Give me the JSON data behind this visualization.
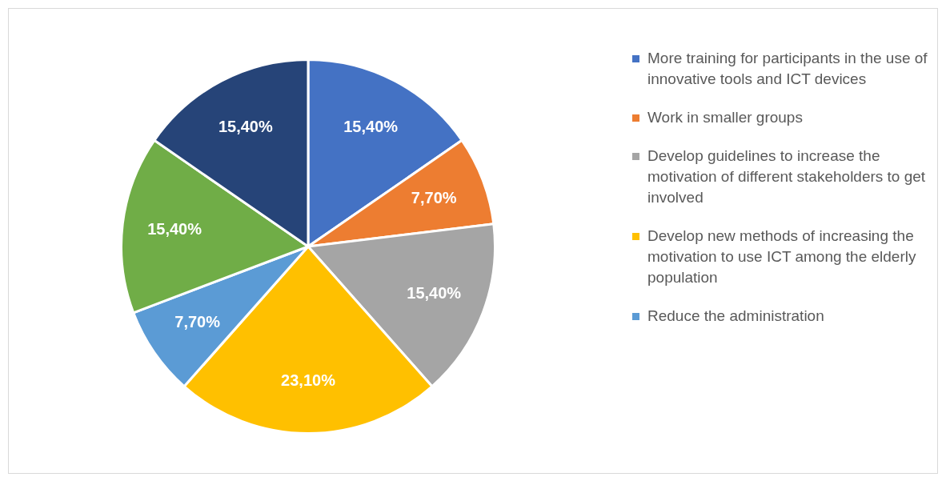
{
  "chart_data": {
    "type": "pie",
    "categories": [
      "More training for participants in the use of innovative tools and ICT devices",
      "Work in smaller groups",
      "Develop guidelines to increase the motivation of different stakeholders to get involved",
      "Develop new methods of increasing the motivation to use ICT among the elderly population",
      "Reduce the administration",
      null,
      null
    ],
    "values": [
      15.4,
      7.7,
      15.4,
      23.1,
      7.7,
      15.4,
      15.4
    ],
    "colors": [
      "#4472c4",
      "#ed7d31",
      "#a5a5a5",
      "#ffc000",
      "#5b9bd5",
      "#70ad47",
      "#264478"
    ],
    "value_labels": [
      "15,40%",
      "7,70%",
      "15,40%",
      "23,10%",
      "7,70%",
      "15,40%",
      "15,40%"
    ],
    "legend": "right"
  }
}
